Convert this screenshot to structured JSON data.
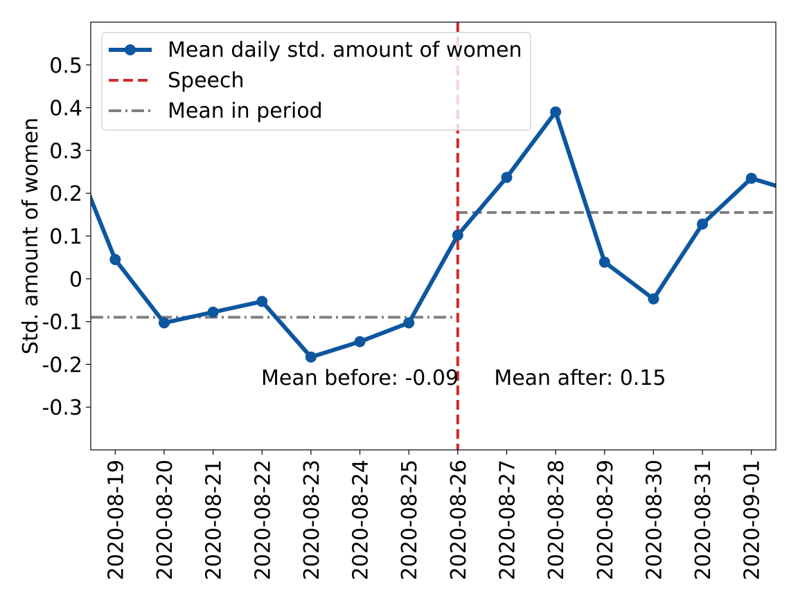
{
  "chart_data": {
    "type": "line",
    "title": "",
    "xlabel": "",
    "ylabel": "Std. amount of women",
    "x_visible_range": [
      "2020-08-18.5",
      "2020-09-01.5"
    ],
    "ylim": [
      -0.4,
      0.6
    ],
    "yticks": [
      -0.3,
      -0.2,
      -0.1,
      0,
      0.1,
      0.2,
      0.3,
      0.4,
      0.5
    ],
    "ytick_labels": [
      "-0.3",
      "-0.2",
      "-0.1",
      "0",
      "0.1",
      "0.2",
      "0.3",
      "0.4",
      "0.5"
    ],
    "xtick_labels": [
      "2020-08-19",
      "2020-08-20",
      "2020-08-21",
      "2020-08-22",
      "2020-08-23",
      "2020-08-24",
      "2020-08-25",
      "2020-08-26",
      "2020-08-27",
      "2020-08-28",
      "2020-08-29",
      "2020-08-30",
      "2020-08-31",
      "2020-09-01"
    ],
    "grid": false,
    "legend_position": "top-left",
    "series": [
      {
        "name": "Mean daily std. amount of women",
        "color": "#0d56a0",
        "marker": "circle",
        "line_style": "solid",
        "x": [
          "2020-08-18",
          "2020-08-19",
          "2020-08-20",
          "2020-08-21",
          "2020-08-22",
          "2020-08-23",
          "2020-08-24",
          "2020-08-25",
          "2020-08-26",
          "2020-08-27",
          "2020-08-28",
          "2020-08-29",
          "2020-08-30",
          "2020-08-31",
          "2020-09-01",
          "2020-09-02"
        ],
        "y": [
          0.33,
          0.045,
          -0.103,
          -0.078,
          -0.053,
          -0.183,
          -0.147,
          -0.103,
          0.102,
          0.237,
          0.39,
          0.039,
          -0.047,
          0.128,
          0.235,
          0.2
        ]
      }
    ],
    "speech_line": {
      "name": "Speech",
      "x": "2020-08-26",
      "color": "#d62728",
      "line_style": "dashed"
    },
    "period_means": {
      "name": "Mean in period",
      "color": "#808080",
      "before": {
        "value": -0.09,
        "x_range": [
          "2020-08-18.5",
          "2020-08-26"
        ],
        "line_style": "dashdot"
      },
      "after": {
        "value": 0.155,
        "x_range": [
          "2020-08-26",
          "2020-09-01.5"
        ],
        "line_style": "dashed"
      }
    },
    "annotations": [
      {
        "text": "Mean before: -0.09",
        "x": "2020-08-24",
        "y": -0.23
      },
      {
        "text": "Mean after: 0.15",
        "x": "2020-08-28.5",
        "y": -0.23
      }
    ]
  }
}
